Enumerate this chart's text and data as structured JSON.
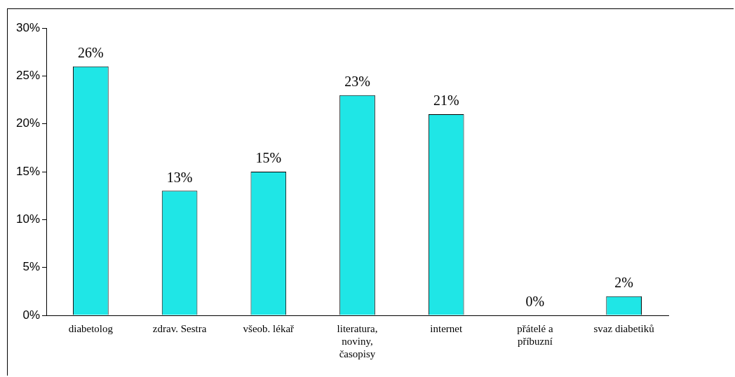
{
  "chart_data": {
    "type": "bar",
    "categories": [
      "diabetolog",
      "zdrav. Sestra",
      "všeob. lékař",
      "literatura, noviny, časopisy",
      "internet",
      "přátelé a příbuzní",
      "svaz diabetiků"
    ],
    "values": [
      26,
      13,
      15,
      23,
      21,
      0,
      2
    ],
    "color": "#1fe6e6",
    "value_labels": [
      "26%",
      "13%",
      "15%",
      "23%",
      "21%",
      "0%",
      "2%"
    ],
    "ylim": [
      0,
      30
    ],
    "yticks": [
      {
        "value": 0,
        "label": "0%"
      },
      {
        "value": 5,
        "label": "5%"
      },
      {
        "value": 10,
        "label": "10%"
      },
      {
        "value": 15,
        "label": "15%"
      },
      {
        "value": 20,
        "label": "20%"
      },
      {
        "value": 25,
        "label": "25%"
      },
      {
        "value": 30,
        "label": "30%"
      }
    ],
    "grid": false,
    "legend": false
  }
}
